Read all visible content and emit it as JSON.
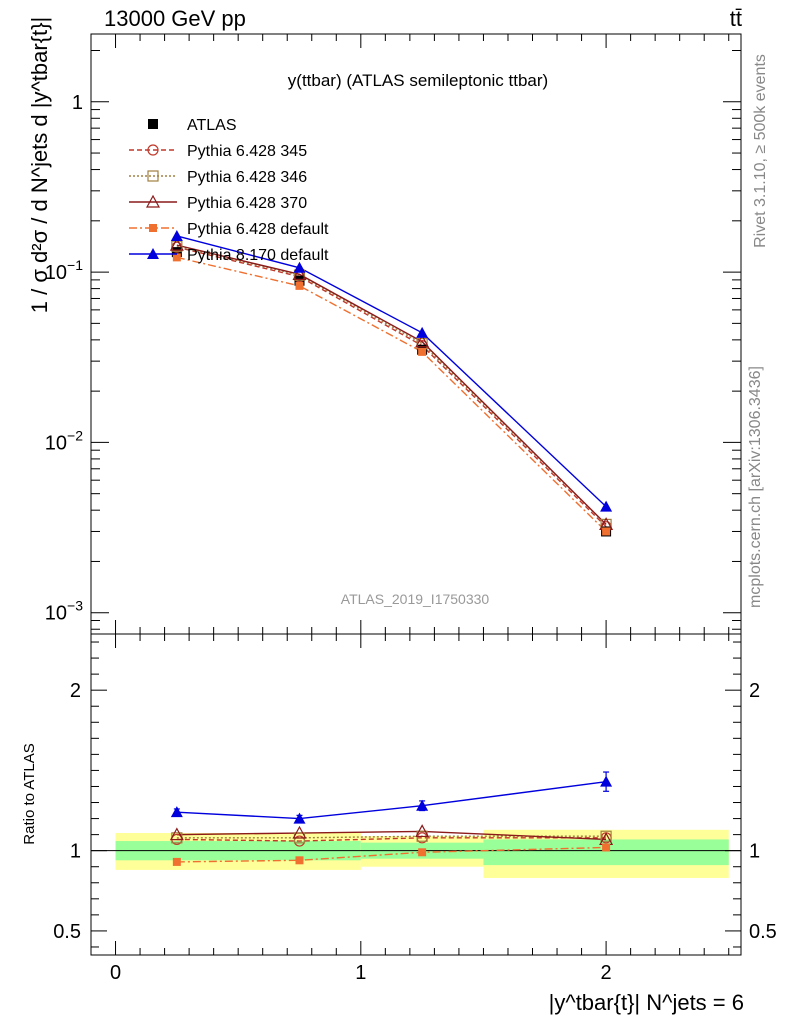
{
  "header": {
    "left": "13000 GeV pp",
    "right": "tt̄"
  },
  "side_labels": {
    "rivet": "Rivet 3.1.10, ≥ 500k events",
    "mcplots": "mcplots.cern.ch [arXiv:1306.3436]"
  },
  "plot_title": "y(ttbar) (ATLAS semileptonic ttbar)",
  "watermark": "ATLAS_2019_I1750330",
  "ylabel_top": "1 / σ d²σ / d N^jets d |y^tbar{t}|",
  "ylabel_bottom": "Ratio to ATLAS",
  "xlabel": "|y^tbar{t}| N^jets = 6",
  "colors": {
    "atlas": "#000000",
    "p345": "#c0392b",
    "p346": "#a08040",
    "p370": "#8b1a1a",
    "p428def": "#f07030",
    "p8": "#0000dd",
    "band_inner": "#99ff99",
    "band_outer": "#ffff99"
  },
  "chart_data": {
    "type": "line",
    "x_edges": [
      0,
      0.5,
      1.0,
      1.5,
      2.5
    ],
    "x_centers": [
      0.25,
      0.75,
      1.25,
      2.0
    ],
    "xlim": [
      -0.1,
      2.55
    ],
    "x_ticks": [
      0,
      1,
      2
    ],
    "main": {
      "yscale": "log",
      "ylim": [
        0.00075,
        2.5
      ],
      "y_ticks": [
        {
          "value": 0.001,
          "base": "10",
          "exp": "−3"
        },
        {
          "value": 0.01,
          "base": "10",
          "exp": "−2"
        },
        {
          "value": 0.1,
          "base": "10",
          "exp": "−1"
        },
        {
          "value": 1,
          "base": "1",
          "exp": ""
        }
      ]
    },
    "ratio": {
      "yscale": "linear",
      "ylim": [
        0.35,
        2.35
      ],
      "y_ticks": [
        0.5,
        1,
        2
      ],
      "bands": [
        {
          "x0": 0,
          "x1": 1.0,
          "inner": [
            0.94,
            1.06
          ],
          "outer": [
            0.88,
            1.11
          ]
        },
        {
          "x0": 1.0,
          "x1": 1.5,
          "inner": [
            0.95,
            1.05
          ],
          "outer": [
            0.9,
            1.09
          ]
        },
        {
          "x0": 1.5,
          "x1": 2.5,
          "inner": [
            0.91,
            1.07
          ],
          "outer": [
            0.83,
            1.13
          ]
        }
      ]
    },
    "series": [
      {
        "name": "ATLAS",
        "key": "atlas",
        "marker": "square-filled",
        "dash": "",
        "values": [
          0.131,
          0.089,
          0.035,
          0.003
        ],
        "ratio": [
          1.0,
          1.0,
          1.0,
          1.0
        ]
      },
      {
        "name": "Pythia 6.428 345",
        "key": "p345",
        "marker": "circle-open",
        "dash": "5,3",
        "values": [
          0.14,
          0.094,
          0.037,
          0.0032
        ],
        "ratio": [
          1.07,
          1.06,
          1.08,
          1.08
        ]
      },
      {
        "name": "Pythia 6.428 346",
        "key": "p346",
        "marker": "square-open",
        "dash": "2,2",
        "values": [
          0.142,
          0.096,
          0.038,
          0.0033
        ],
        "ratio": [
          1.08,
          1.08,
          1.09,
          1.09
        ]
      },
      {
        "name": "Pythia 6.428 370",
        "key": "p370",
        "marker": "triangle-open",
        "dash": "",
        "values": [
          0.144,
          0.097,
          0.039,
          0.0033
        ],
        "ratio": [
          1.1,
          1.11,
          1.12,
          1.07
        ]
      },
      {
        "name": "Pythia 6.428 default",
        "key": "p428def",
        "marker": "square-small-filled",
        "dash": "8,3,2,3",
        "values": [
          0.122,
          0.083,
          0.034,
          0.003
        ],
        "ratio": [
          0.93,
          0.94,
          0.99,
          1.02
        ]
      },
      {
        "name": "Pythia 8.170 default",
        "key": "p8",
        "marker": "triangle-filled",
        "dash": "",
        "values": [
          0.163,
          0.106,
          0.044,
          0.0042
        ],
        "ratio": [
          1.24,
          1.2,
          1.28,
          1.43
        ],
        "ratio_err": [
          0.02,
          0.02,
          0.03,
          0.06
        ]
      }
    ]
  }
}
